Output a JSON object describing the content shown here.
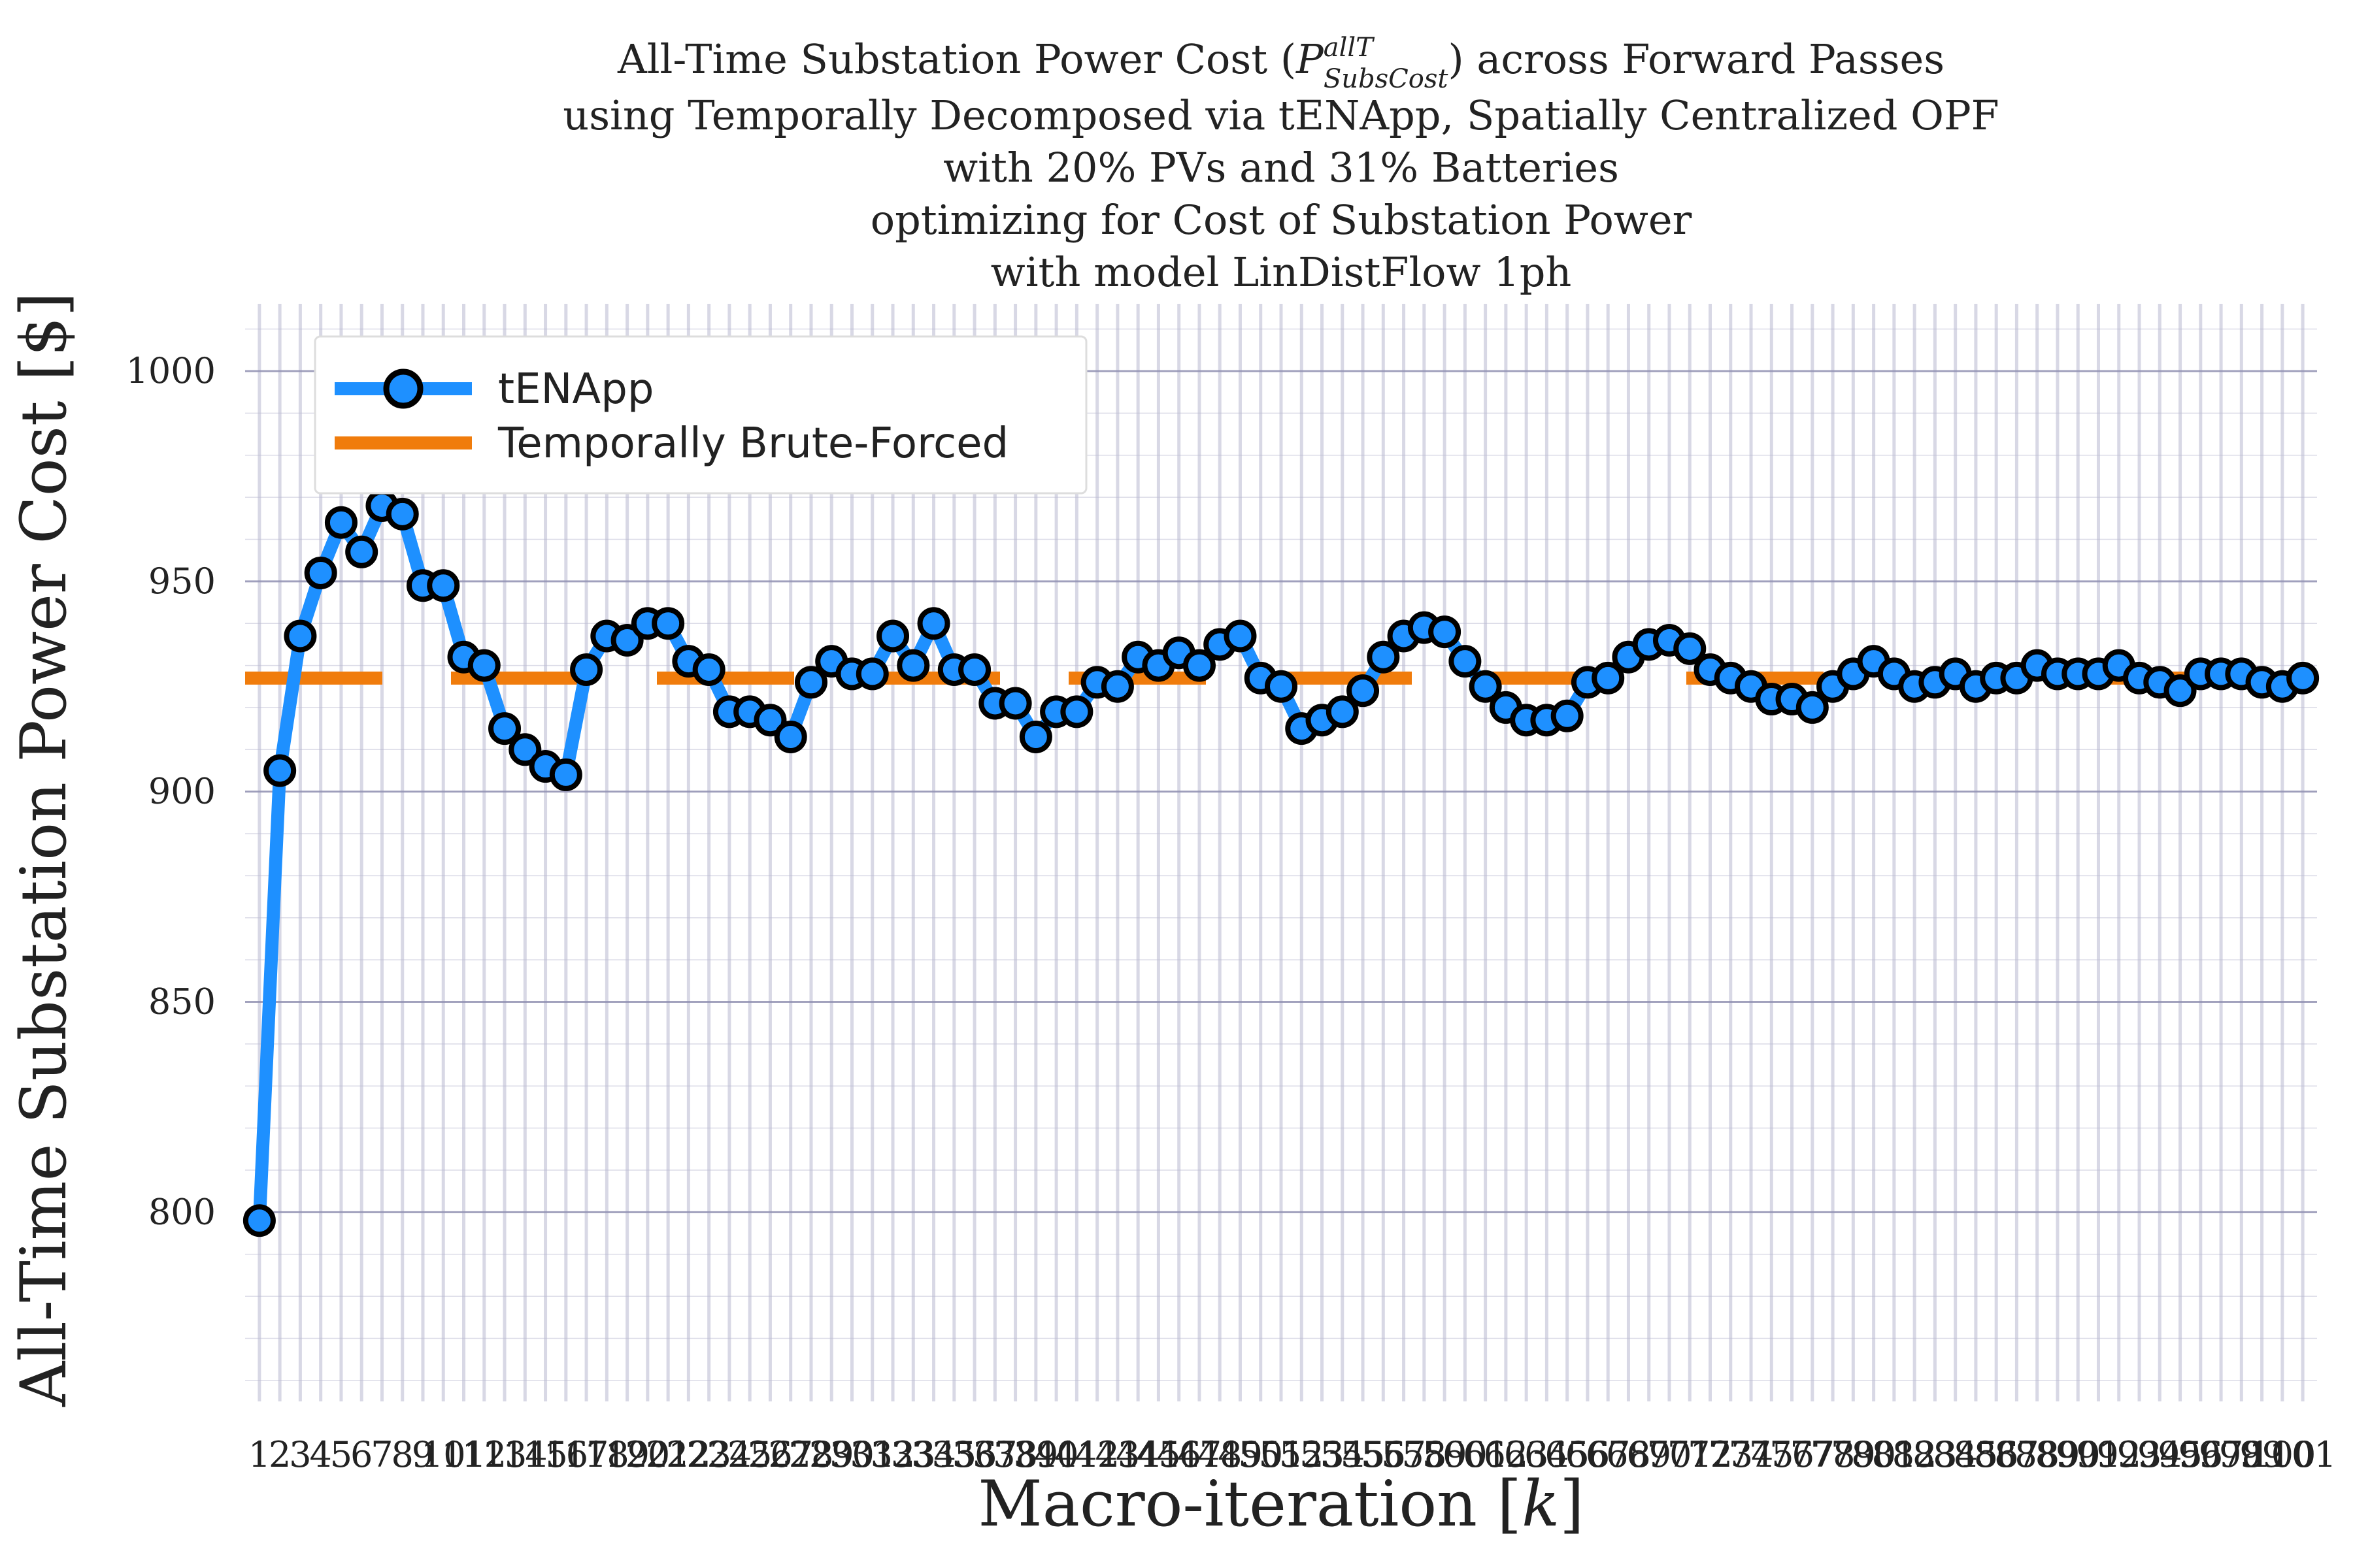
{
  "chart_data": {
    "type": "line",
    "title_lines": [
      "All-Time Substation Power Cost (P_SubsCost^allT) across Forward Passes",
      "using Temporally Decomposed via tENApp, Spatially Centralized OPF",
      "with 20% PVs and 31% Batteries",
      "optimizing for Cost of Substation Power",
      "with model LinDistFlow 1ph"
    ],
    "xlabel": "Macro-iteration [k]",
    "ylabel": "All-Time Substation Power Cost [$]",
    "ylim": [
      755,
      1016
    ],
    "xlim": [
      0.3,
      101.7
    ],
    "yticks": [
      800,
      850,
      900,
      950,
      1000
    ],
    "grid": true,
    "legend_position": "top-left",
    "colors": {
      "tenapp": "#1e90ff",
      "brute": "#f07c0c",
      "marker_edge": "#000000",
      "grid": "#b8b8d0"
    },
    "x": [
      1,
      2,
      3,
      4,
      5,
      6,
      7,
      8,
      9,
      10,
      11,
      12,
      13,
      14,
      15,
      16,
      17,
      18,
      19,
      20,
      21,
      22,
      23,
      24,
      25,
      26,
      27,
      28,
      29,
      30,
      31,
      32,
      33,
      34,
      35,
      36,
      37,
      38,
      39,
      40,
      41,
      42,
      43,
      44,
      45,
      46,
      47,
      48,
      49,
      50,
      51,
      52,
      53,
      54,
      55,
      56,
      57,
      58,
      59,
      60,
      61,
      62,
      63,
      64,
      65,
      66,
      67,
      68,
      69,
      70,
      71,
      72,
      73,
      74,
      75,
      76,
      77,
      78,
      79,
      80,
      81,
      82,
      83,
      84,
      85,
      86,
      87,
      88,
      89,
      90,
      91,
      92,
      93,
      94,
      95,
      96,
      97,
      98,
      99,
      100,
      101
    ],
    "series": [
      {
        "name": "tENApp",
        "values": [
          798,
          905,
          937,
          952,
          964,
          957,
          968,
          966,
          949,
          949,
          932,
          930,
          915,
          910,
          906,
          904,
          929,
          937,
          936,
          940,
          940,
          931,
          929,
          919,
          919,
          917,
          913,
          926,
          931,
          928,
          928,
          937,
          930,
          940,
          929,
          929,
          921,
          921,
          913,
          919,
          919,
          926,
          925,
          932,
          930,
          933,
          930,
          935,
          937,
          927,
          925,
          915,
          917,
          919,
          924,
          932,
          937,
          939,
          938,
          931,
          925,
          920,
          917,
          917,
          918,
          926,
          927,
          932,
          935,
          936,
          934,
          929,
          927,
          925,
          922,
          922,
          920,
          925,
          928,
          931,
          928,
          925,
          926,
          928,
          925,
          927,
          927,
          930,
          928,
          928,
          928,
          930,
          927,
          926,
          924,
          928,
          928,
          928,
          926,
          925,
          927
        ],
        "marker": "circle"
      },
      {
        "name": "Temporally Brute-Forced",
        "value": 927,
        "style": "dashed"
      }
    ]
  }
}
